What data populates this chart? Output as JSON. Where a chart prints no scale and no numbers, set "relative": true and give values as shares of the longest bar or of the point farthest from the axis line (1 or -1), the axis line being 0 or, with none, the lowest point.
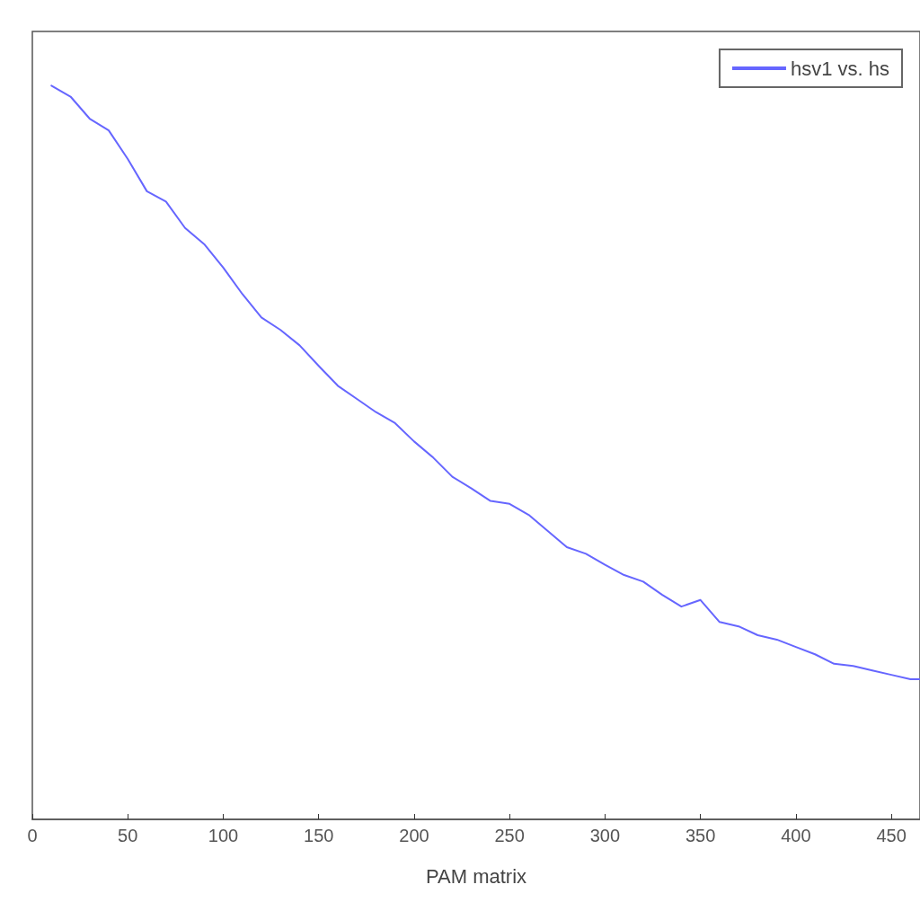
{
  "chart_data": {
    "type": "line",
    "xlabel": "PAM matrix",
    "relative": true,
    "xlim": [
      0,
      465
    ],
    "xticks": [
      0,
      50,
      100,
      150,
      200,
      250,
      300,
      350,
      400,
      450
    ],
    "grid": false,
    "legend": "top right",
    "marker": "none",
    "line_style": "solid",
    "series": [
      {
        "name": "hsv1 vs. hs",
        "color": "#6666ff",
        "x": [
          10,
          20,
          30,
          40,
          50,
          60,
          70,
          80,
          90,
          100,
          110,
          120,
          130,
          140,
          150,
          160,
          170,
          180,
          190,
          200,
          210,
          220,
          230,
          240,
          250,
          260,
          270,
          280,
          290,
          300,
          310,
          320,
          330,
          340,
          350,
          360,
          370,
          380,
          390,
          400,
          410,
          420,
          430,
          440,
          450,
          460,
          465
        ],
        "values": [
          1.0,
          0.985,
          0.955,
          0.939,
          0.9,
          0.856,
          0.842,
          0.806,
          0.784,
          0.752,
          0.716,
          0.684,
          0.667,
          0.646,
          0.618,
          0.591,
          0.573,
          0.555,
          0.54,
          0.515,
          0.493,
          0.467,
          0.451,
          0.434,
          0.43,
          0.415,
          0.393,
          0.371,
          0.362,
          0.347,
          0.333,
          0.324,
          0.306,
          0.29,
          0.299,
          0.269,
          0.263,
          0.251,
          0.245,
          0.235,
          0.225,
          0.212,
          0.209,
          0.203,
          0.197,
          0.191,
          0.191
        ]
      }
    ]
  }
}
